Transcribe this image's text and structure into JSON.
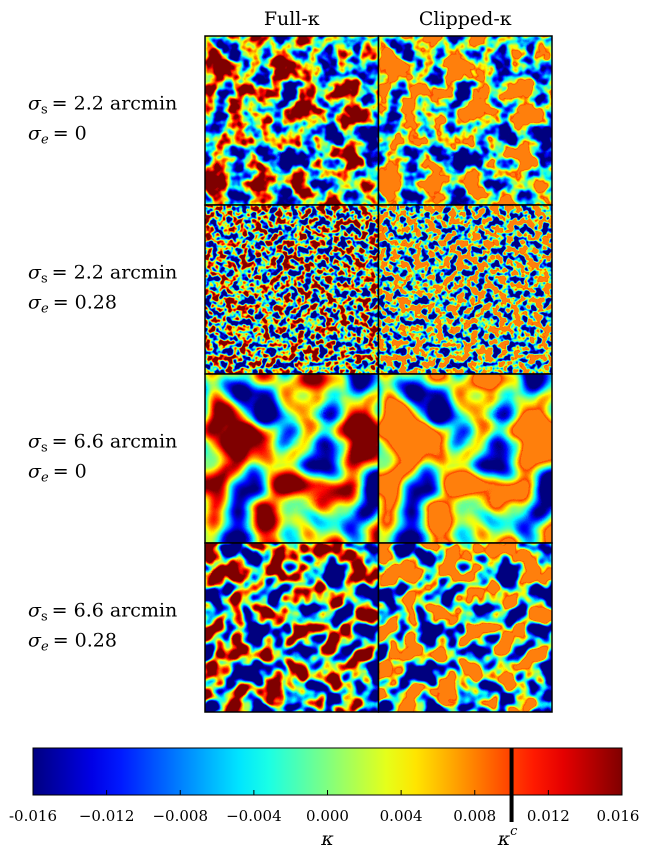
{
  "chart_data": {
    "type": "map-grid",
    "columns": [
      "Full-κ",
      "Clipped-κ"
    ],
    "rows": [
      {
        "sigma_s": {
          "symbol": "σ",
          "sub": "s",
          "text": "= 2.2 arcmin"
        },
        "sigma_e": {
          "symbol": "σ",
          "sub": "e",
          "text": "= 0"
        }
      },
      {
        "sigma_s": {
          "symbol": "σ",
          "sub": "s",
          "text": "= 2.2 arcmin"
        },
        "sigma_e": {
          "symbol": "σ",
          "sub": "e",
          "text": "= 0.28"
        }
      },
      {
        "sigma_s": {
          "symbol": "σ",
          "sub": "s",
          "text": "= 6.6 arcmin"
        },
        "sigma_e": {
          "symbol": "σ",
          "sub": "e",
          "text": "= 0"
        }
      },
      {
        "sigma_s": {
          "symbol": "σ",
          "sub": "s",
          "text": "= 6.6 arcmin"
        },
        "sigma_e": {
          "symbol": "σ",
          "sub": "e",
          "text": "= 0.28"
        }
      }
    ],
    "colorbar": {
      "colormap": "jet",
      "xlim": [
        -0.016,
        0.016
      ],
      "xticks": [
        {
          "value": -0.016,
          "label": "-0.016"
        },
        {
          "value": -0.012,
          "label": "−0.012"
        },
        {
          "value": -0.008,
          "label": "−0.008"
        },
        {
          "value": -0.004,
          "label": "−0.004"
        },
        {
          "value": 0,
          "label": "0.000"
        },
        {
          "value": 0.004,
          "label": "0.004"
        },
        {
          "value": 0.008,
          "label": "0.008"
        },
        {
          "value": 0.012,
          "label": "0.012"
        },
        {
          "value": 0.016,
          "label": "0.016"
        }
      ],
      "xlabel": "κ",
      "threshold": {
        "value": 0.01,
        "symbol": "κ",
        "sup": "c"
      }
    }
  }
}
